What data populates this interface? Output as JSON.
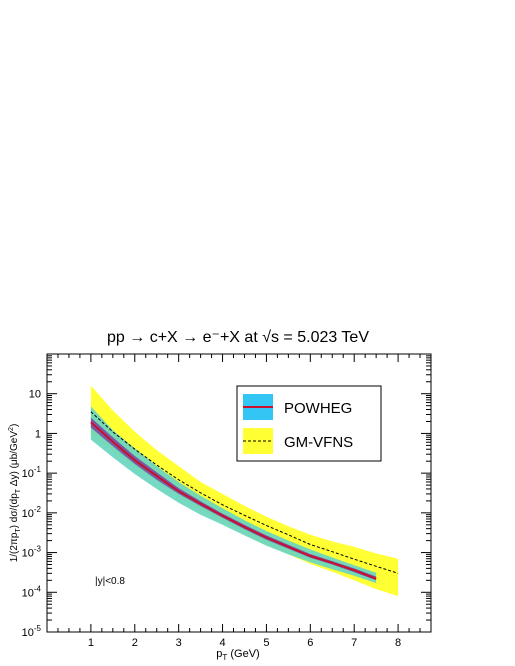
{
  "chart_data": {
    "type": "line",
    "title": "pp → c+X → e⁻+X at √s = 5.023 TeV",
    "xlabel": "p_T (GeV)",
    "ylabel": "1/(2πp_T) dσ/(dp_T Δy) (μb/GeV²)",
    "xlim": [
      0.0,
      8.75
    ],
    "ylim": [
      1e-05,
      100
    ],
    "yscale": "log",
    "grid": false,
    "legend_position": "top-right",
    "annotation": "|y|<0.8",
    "x_ticks": [
      "1",
      "2",
      "3",
      "4",
      "5",
      "6",
      "7",
      "8"
    ],
    "y_ticks": [
      {
        "value": 10,
        "label": "10"
      },
      {
        "value": 1,
        "label": "1"
      },
      {
        "value": 0.1,
        "label": "10-1"
      },
      {
        "value": 0.01,
        "label": "10-2"
      },
      {
        "value": 0.001,
        "label": "10-3"
      },
      {
        "value": 0.0001,
        "label": "10-4"
      },
      {
        "value": 1e-05,
        "label": "10-5"
      }
    ],
    "series": [
      {
        "name": "POWHEG",
        "style": "band+line",
        "band_color": "#33c6f4",
        "line_color": "#c8102e",
        "central_band_color": "#7b2f9e",
        "x": [
          1.0,
          1.5,
          2.0,
          2.5,
          3.0,
          3.5,
          4.0,
          4.5,
          5.0,
          5.5,
          6.0,
          6.5,
          7.0,
          7.5
        ],
        "y": [
          1.9,
          0.62,
          0.21,
          0.085,
          0.035,
          0.017,
          0.0085,
          0.0044,
          0.0024,
          0.0014,
          0.00082,
          0.00055,
          0.00036,
          0.00022
        ],
        "y_low": [
          0.7,
          0.25,
          0.095,
          0.04,
          0.018,
          0.009,
          0.005,
          0.0027,
          0.0015,
          0.0009,
          0.00057,
          0.00038,
          0.00026,
          0.00017
        ],
        "y_high": [
          4.8,
          1.2,
          0.42,
          0.15,
          0.06,
          0.027,
          0.013,
          0.0065,
          0.0035,
          0.002,
          0.0012,
          0.00075,
          0.00048,
          0.00031
        ],
        "central_low": [
          1.4,
          0.48,
          0.17,
          0.068,
          0.03,
          0.0148,
          0.0075,
          0.0039,
          0.0021,
          0.00125,
          0.00074,
          0.0005,
          0.00032,
          0.0002
        ],
        "central_high": [
          2.5,
          0.8,
          0.27,
          0.105,
          0.042,
          0.0195,
          0.0096,
          0.005,
          0.0027,
          0.00158,
          0.00092,
          0.00061,
          0.0004,
          0.00025
        ]
      },
      {
        "name": "GM-VFNS",
        "style": "band+dashed",
        "band_color": "#ffff33",
        "line_color": "#000000",
        "x": [
          1.0,
          1.5,
          2.0,
          2.5,
          3.0,
          3.5,
          4.0,
          4.5,
          5.0,
          5.5,
          6.0,
          6.5,
          7.0,
          7.5,
          8.0
        ],
        "y": [
          3.5,
          1.1,
          0.4,
          0.16,
          0.068,
          0.032,
          0.016,
          0.0087,
          0.0048,
          0.0028,
          0.0016,
          0.00105,
          0.00068,
          0.00045,
          0.0003
        ],
        "y_low": [
          0.9,
          0.38,
          0.15,
          0.065,
          0.026,
          0.012,
          0.006,
          0.003,
          0.0016,
          0.0009,
          0.00052,
          0.00033,
          0.0002,
          0.00012,
          8e-05
        ],
        "y_high": [
          16.0,
          3.8,
          1.1,
          0.38,
          0.15,
          0.06,
          0.03,
          0.015,
          0.008,
          0.0046,
          0.0028,
          0.0019,
          0.0014,
          0.00095,
          0.0007
        ]
      }
    ]
  },
  "legend": {
    "powheg_label": "POWHEG",
    "gmvfns_label": "GM-VFNS"
  }
}
